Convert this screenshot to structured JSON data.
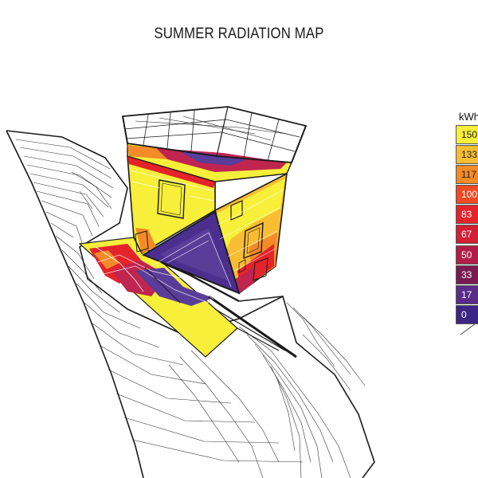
{
  "title": "SUMMER RADIATION MAP",
  "legend": {
    "unit": "kWh",
    "items": [
      {
        "label": "150",
        "color": "#f7ef3a",
        "text_color": "#222222"
      },
      {
        "label": "133",
        "color": "#f9bd33",
        "text_color": "#222222"
      },
      {
        "label": "117",
        "color": "#f48a28",
        "text_color": "#222222"
      },
      {
        "label": "100",
        "color": "#ee4a23",
        "text_color": "#ffffff"
      },
      {
        "label": "83",
        "color": "#e5232a",
        "text_color": "#ffffff"
      },
      {
        "label": "67",
        "color": "#d21f36",
        "text_color": "#ffffff"
      },
      {
        "label": "50",
        "color": "#b21d45",
        "text_color": "#ffffff"
      },
      {
        "label": "33",
        "color": "#7a1a53",
        "text_color": "#ffffff"
      },
      {
        "label": "17",
        "color": "#5a2b88",
        "text_color": "#ffffff"
      },
      {
        "label": "0",
        "color": "#3b2683",
        "text_color": "#ffffff"
      }
    ]
  },
  "colors": {
    "high": "#f7ef3a",
    "upper": "#f9bd33",
    "mid": "#f48a28",
    "red": "#e5232a",
    "magenta": "#c0254f",
    "low": "#5a3c99",
    "lowest": "#3b2683",
    "line": "#1a1a1a"
  }
}
